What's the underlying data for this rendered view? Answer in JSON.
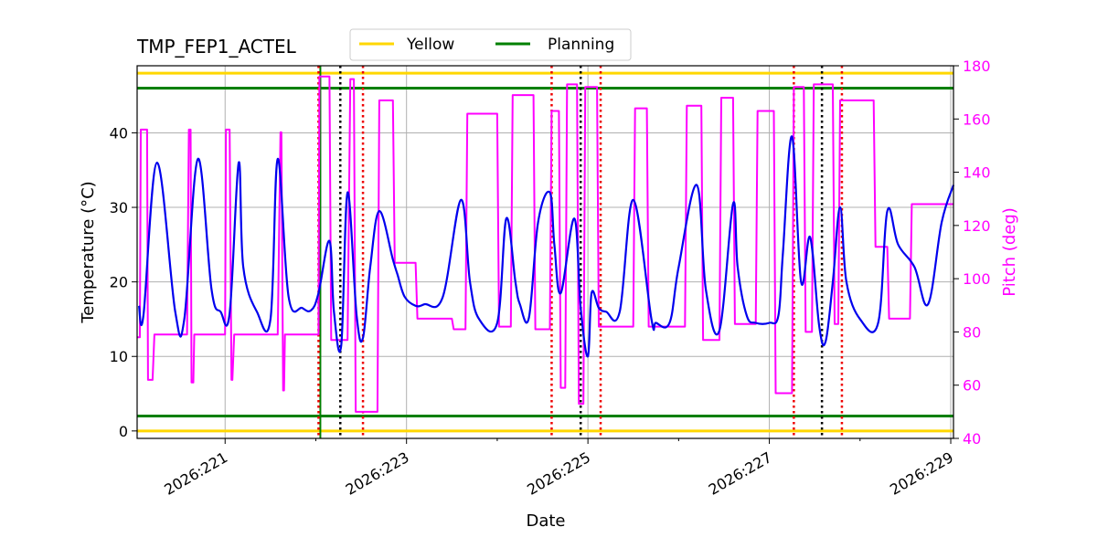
{
  "chart_data": {
    "type": "line",
    "title": "TMP_FEP1_ACTEL",
    "xlabel": "Date",
    "ylabel_left": "Temperature ($^\\circ$C)",
    "ylabel_left_display": "Temperature (°C)",
    "ylabel_right": "Pitch (deg)",
    "x_unit": "day of year 2026",
    "xlim": [
      220.03,
      229.03
    ],
    "ylim_left": [
      -1,
      49
    ],
    "ylim_right": [
      40,
      180
    ],
    "x_ticks": [
      221,
      223,
      225,
      227,
      229
    ],
    "x_tick_labels": [
      "2026:221",
      "2026:223",
      "2026:225",
      "2026:227",
      "2026:229"
    ],
    "y_left_ticks": [
      0,
      10,
      20,
      30,
      40
    ],
    "y_right_ticks": [
      40,
      60,
      80,
      100,
      120,
      140,
      160,
      180
    ],
    "grid": true,
    "legend_placement": "top-center, above plot",
    "colors": {
      "temperature": "#0000ee",
      "pitch": "#ff00ff",
      "yellow": "#ffd700",
      "planning": "#008000",
      "red_marker": "#ee0000",
      "black_marker": "#000000",
      "right_axis": "#ff00ff"
    },
    "limit_lines": [
      {
        "name": "Yellow",
        "values": [
          0,
          48
        ],
        "color": "#ffd700"
      },
      {
        "name": "Planning",
        "values": [
          2,
          46
        ],
        "color": "#008000"
      }
    ],
    "legend": [
      "Yellow",
      "Planning"
    ],
    "vertical_markers": {
      "red_dotted": [
        222.03,
        222.52,
        224.6,
        225.14,
        227.27,
        227.8
      ],
      "black_dotted": [
        222.27,
        224.92,
        227.58
      ],
      "green_solid": [
        222.05
      ]
    },
    "temperature_series": {
      "name": "TMP_FEP1_ACTEL",
      "x": [
        220.05,
        220.1,
        220.25,
        220.45,
        220.55,
        220.7,
        220.85,
        220.95,
        221.05,
        221.15,
        221.2,
        221.35,
        221.5,
        221.58,
        221.7,
        221.85,
        221.95,
        222.03,
        222.15,
        222.2,
        222.28,
        222.35,
        222.45,
        222.52,
        222.6,
        222.7,
        222.85,
        222.9,
        222.98,
        223.1,
        223.2,
        223.4,
        223.6,
        223.7,
        223.8,
        224.0,
        224.1,
        224.2,
        224.25,
        224.35,
        224.45,
        224.58,
        224.63,
        224.7,
        224.85,
        224.92,
        225.0,
        225.04,
        225.12,
        225.2,
        225.35,
        225.5,
        225.7,
        225.75,
        225.9,
        226.0,
        226.2,
        226.3,
        226.45,
        226.6,
        226.65,
        226.75,
        226.85,
        227.0,
        227.1,
        227.15,
        227.25,
        227.35,
        227.45,
        227.55,
        227.62,
        227.7,
        227.78,
        227.85,
        228.0,
        228.2,
        228.3,
        228.42,
        228.6,
        228.75,
        228.9,
        229.03
      ],
      "values": [
        16.8,
        15.5,
        36.0,
        16.0,
        15.0,
        36.5,
        19.0,
        16.0,
        15.8,
        36.0,
        22.0,
        16.0,
        15.0,
        36.5,
        18.0,
        16.5,
        16.2,
        18.5,
        25.5,
        16.0,
        11.5,
        32.0,
        15.5,
        12.5,
        22.0,
        29.5,
        23.0,
        21.0,
        18.0,
        16.8,
        17.0,
        18.0,
        31.0,
        20.0,
        15.0,
        14.5,
        28.5,
        20.0,
        17.0,
        15.2,
        28.0,
        32.0,
        25.0,
        18.5,
        28.5,
        16.5,
        10.0,
        18.5,
        16.5,
        16.0,
        16.0,
        31.0,
        15.0,
        14.5,
        14.5,
        22.0,
        33.0,
        19.0,
        13.5,
        30.5,
        22.0,
        15.5,
        14.5,
        14.5,
        15.5,
        24.0,
        39.5,
        20.0,
        26.0,
        14.0,
        12.0,
        20.0,
        30.0,
        20.0,
        15.0,
        14.5,
        29.5,
        25.0,
        22.0,
        17.0,
        28.0,
        33.0
      ]
    },
    "pitch_series": {
      "name": "Pitch",
      "x": [
        220.03,
        220.06,
        220.07,
        220.14,
        220.15,
        220.2,
        220.22,
        220.23,
        220.25,
        220.26,
        220.27,
        220.38,
        220.4,
        220.52,
        220.53,
        220.58,
        220.6,
        220.62,
        220.63,
        220.65,
        220.66,
        220.85,
        220.87,
        221.0,
        221.01,
        221.05,
        221.07,
        221.08,
        221.1,
        221.11,
        221.12,
        221.3,
        221.32,
        221.48,
        221.49,
        221.58,
        221.61,
        221.62,
        221.64,
        221.65,
        221.66,
        221.95,
        221.97,
        222.03,
        222.04,
        222.15,
        222.17,
        222.18,
        222.2,
        222.21,
        222.22,
        222.35,
        222.38,
        222.42,
        222.44,
        222.5,
        222.52,
        222.68,
        222.7,
        222.85,
        222.87,
        223.1,
        223.12,
        223.5,
        223.52,
        223.65,
        223.67,
        224.0,
        224.02,
        224.15,
        224.17,
        224.4,
        224.42,
        224.58,
        224.6,
        224.68,
        224.7,
        224.75,
        224.77,
        224.88,
        224.9,
        224.95,
        224.97,
        225.1,
        225.12,
        225.5,
        225.52,
        225.65,
        225.67,
        226.07,
        226.09,
        226.25,
        226.27,
        226.45,
        226.47,
        226.6,
        226.62,
        226.85,
        226.87,
        227.05,
        227.07,
        227.25,
        227.27,
        227.38,
        227.4,
        227.47,
        227.49,
        227.7,
        227.72,
        227.76,
        227.78,
        228.15,
        228.17,
        228.3,
        228.32,
        228.55,
        228.57,
        228.72,
        228.74,
        229.03
      ],
      "values": [
        78,
        78,
        156,
        156,
        62,
        62,
        79,
        79,
        79,
        79,
        79,
        79,
        79,
        79,
        79,
        79,
        156,
        156,
        61,
        61,
        79,
        79,
        79,
        79,
        156,
        156,
        62,
        62,
        79,
        79,
        79,
        79,
        79,
        79,
        79,
        79,
        155,
        155,
        58,
        58,
        79,
        79,
        79,
        79,
        176,
        176,
        77,
        77,
        77,
        77,
        77,
        77,
        175,
        175,
        50,
        50,
        50,
        50,
        167,
        167,
        106,
        106,
        85,
        85,
        81,
        81,
        162,
        162,
        82,
        82,
        169,
        169,
        81,
        81,
        163,
        163,
        59,
        59,
        173,
        173,
        53,
        53,
        172,
        172,
        82,
        82,
        164,
        164,
        82,
        82,
        165,
        165,
        77,
        77,
        168,
        168,
        83,
        83,
        163,
        163,
        57,
        57,
        172,
        172,
        80,
        80,
        173,
        173,
        83,
        83,
        167,
        167,
        112,
        112,
        85,
        85,
        128,
        128,
        128,
        128
      ]
    }
  }
}
